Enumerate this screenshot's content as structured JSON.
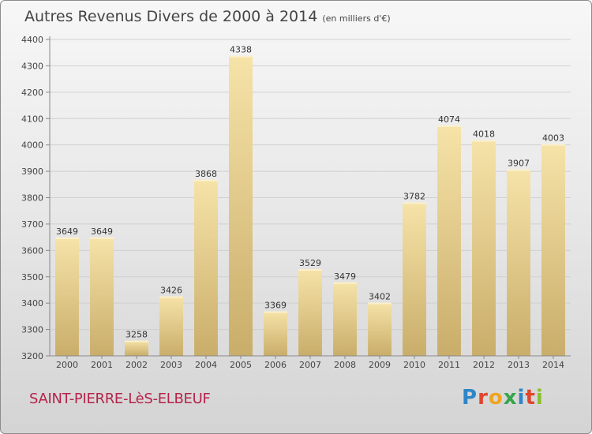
{
  "title": "Autres Revenus Divers de 2000 à 2014",
  "subtitle": "(en milliers d'€)",
  "place": "SAINT-PIERRE-LèS-ELBEUF",
  "brand": "Proxiti",
  "colors": {
    "bar_top": "#f6e3a8",
    "bar_bottom": "#c9ad6a",
    "title": "#444444",
    "place": "#b5234a"
  },
  "chart_data": {
    "type": "bar",
    "categories": [
      "2000",
      "2001",
      "2002",
      "2003",
      "2004",
      "2005",
      "2006",
      "2007",
      "2008",
      "2009",
      "2010",
      "2011",
      "2012",
      "2013",
      "2014"
    ],
    "values": [
      3649,
      3649,
      3258,
      3426,
      3868,
      4338,
      3369,
      3529,
      3479,
      3402,
      3782,
      4074,
      4018,
      3907,
      4003
    ],
    "ylim": [
      3200,
      4400
    ],
    "yticks": [
      3200,
      3300,
      3400,
      3500,
      3600,
      3700,
      3800,
      3900,
      4000,
      4100,
      4200,
      4300,
      4400
    ],
    "grid": true,
    "legend": "none"
  }
}
